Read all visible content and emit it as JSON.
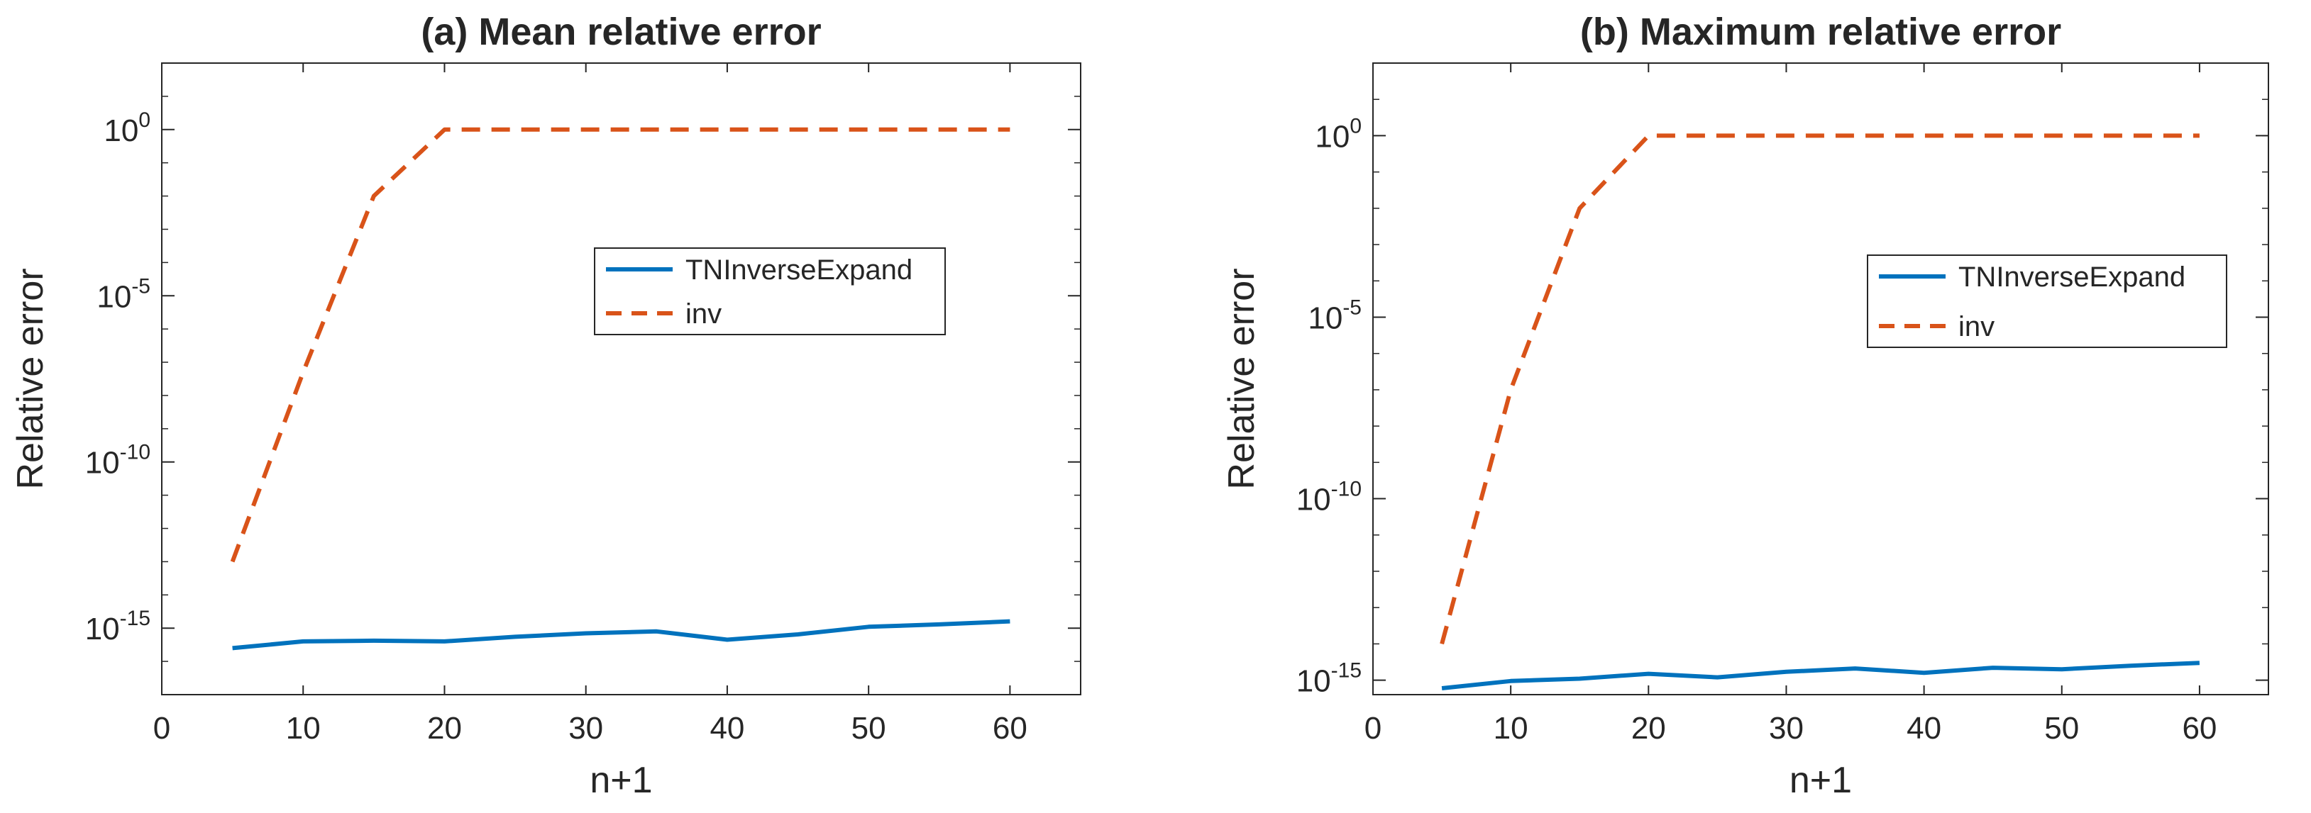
{
  "chart_data": [
    {
      "type": "line",
      "title": "(a) Mean relative error",
      "xlabel": "n+1",
      "ylabel": "Relative error",
      "xlim": [
        0,
        65
      ],
      "ylim": [
        1e-17,
        100.0
      ],
      "yscale": "log",
      "xticks": [
        0,
        10,
        20,
        30,
        40,
        50,
        60
      ],
      "yticks": [
        {
          "base": "10",
          "exp": "-15",
          "value": 1e-15
        },
        {
          "base": "10",
          "exp": "-10",
          "value": 1e-10
        },
        {
          "base": "10",
          "exp": "-5",
          "value": 1e-05
        },
        {
          "base": "10",
          "exp": "0",
          "value": 1
        }
      ],
      "grid": false,
      "legend_position": "center-right",
      "series": [
        {
          "name": "TNInverseExpand",
          "color": "#0072BD",
          "style": "solid",
          "x": [
            5,
            10,
            15,
            20,
            25,
            30,
            35,
            40,
            45,
            50,
            55,
            60
          ],
          "y": [
            2.5e-16,
            4e-16,
            4.2e-16,
            4e-16,
            5.5e-16,
            7e-16,
            8e-16,
            4.5e-16,
            6.5e-16,
            1.1e-15,
            1.3e-15,
            1.6e-15
          ]
        },
        {
          "name": "inv",
          "color": "#D95319",
          "style": "dashed",
          "x": [
            5,
            10,
            15,
            20,
            25,
            30,
            35,
            40,
            45,
            50,
            55,
            60
          ],
          "y": [
            1e-13,
            5e-08,
            0.01,
            1,
            1,
            1,
            1,
            1,
            1,
            1,
            1,
            1
          ]
        }
      ]
    },
    {
      "type": "line",
      "title": "(b) Maximum relative error",
      "xlabel": "n+1",
      "ylabel": "Relative error",
      "xlim": [
        0,
        65
      ],
      "ylim": [
        4e-16,
        100.0
      ],
      "yscale": "log",
      "xticks": [
        0,
        10,
        20,
        30,
        40,
        50,
        60
      ],
      "yticks": [
        {
          "base": "10",
          "exp": "-15",
          "value": 1e-15
        },
        {
          "base": "10",
          "exp": "-10",
          "value": 1e-10
        },
        {
          "base": "10",
          "exp": "-5",
          "value": 1e-05
        },
        {
          "base": "10",
          "exp": "0",
          "value": 1
        }
      ],
      "grid": false,
      "legend_position": "center-right",
      "series": [
        {
          "name": "TNInverseExpand",
          "color": "#0072BD",
          "style": "solid",
          "x": [
            5,
            10,
            15,
            20,
            25,
            30,
            35,
            40,
            45,
            50,
            55,
            60
          ],
          "y": [
            6e-16,
            9.5e-16,
            1.1e-15,
            1.5e-15,
            1.2e-15,
            1.7e-15,
            2.1e-15,
            1.6e-15,
            2.2e-15,
            2e-15,
            2.5e-15,
            3e-15
          ]
        },
        {
          "name": "inv",
          "color": "#D95319",
          "style": "dashed",
          "x": [
            5,
            10,
            15,
            20,
            25,
            30,
            35,
            40,
            45,
            50,
            55,
            60
          ],
          "y": [
            1e-14,
            1e-07,
            0.01,
            1,
            1,
            1,
            1,
            1,
            1,
            1,
            1,
            1
          ]
        }
      ]
    }
  ]
}
